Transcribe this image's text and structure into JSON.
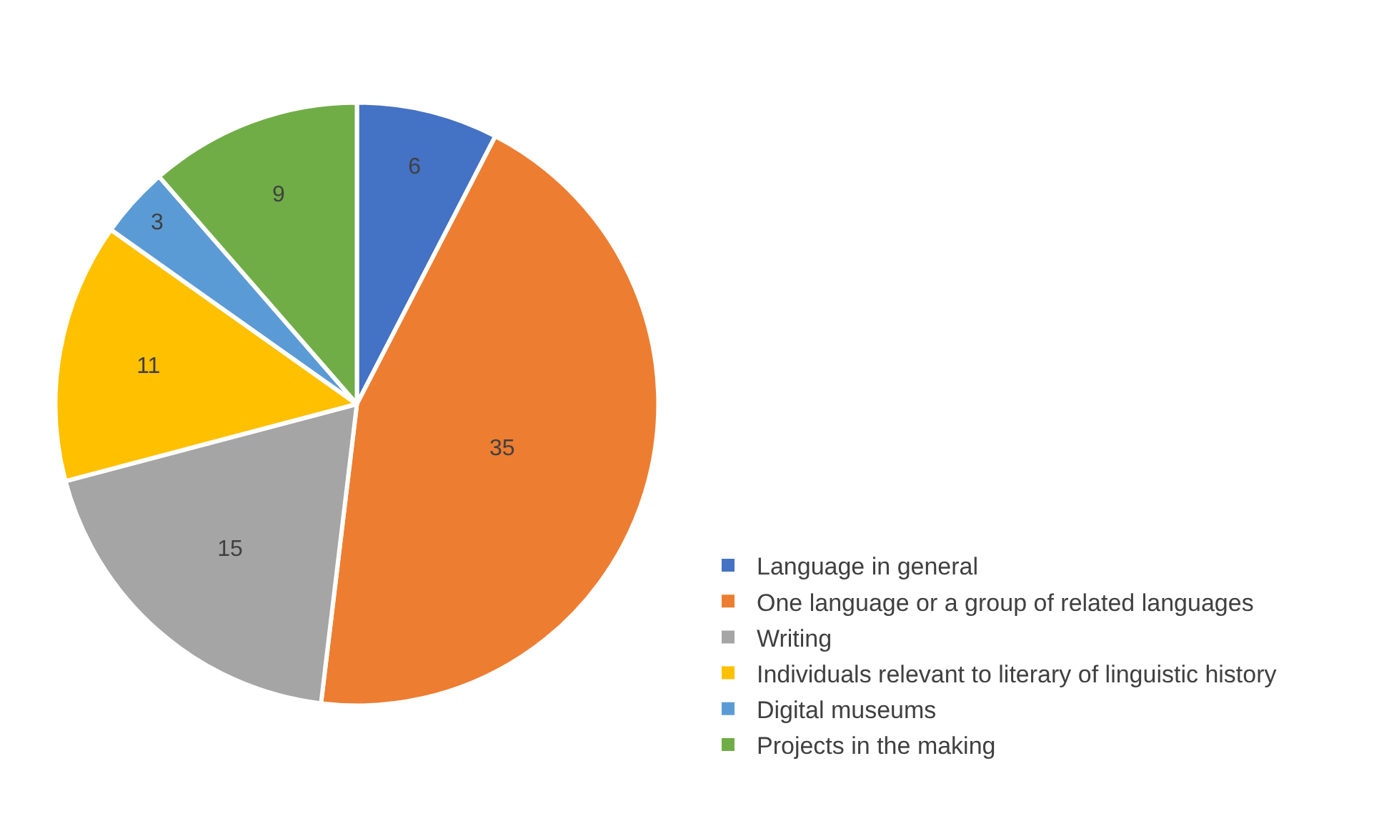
{
  "chart_data": {
    "type": "pie",
    "categories": [
      "Language in general",
      "One language or a group of related languages",
      "Writing",
      "Individuals relevant to literary of linguistic history",
      "Digital museums",
      "Projects in the making"
    ],
    "values": [
      6,
      35,
      15,
      11,
      3,
      9
    ],
    "colors": [
      "#4472c4",
      "#ed7d31",
      "#a5a5a5",
      "#ffc000",
      "#5b9bd5",
      "#70ad47"
    ],
    "data_labels": true,
    "legend": "bottom right"
  }
}
